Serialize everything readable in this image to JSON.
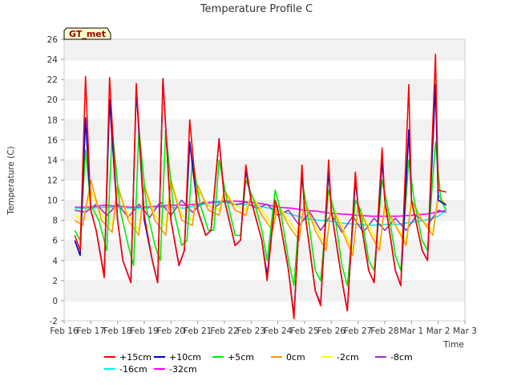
{
  "chart_data": {
    "type": "line",
    "title": "Temperature Profile C",
    "xlabel": "Time",
    "ylabel": "Temperature (C)",
    "ylim": [
      -2,
      26
    ],
    "yticks": [
      -2,
      0,
      2,
      4,
      6,
      8,
      10,
      12,
      14,
      16,
      18,
      20,
      22,
      24,
      26
    ],
    "xlim": [
      0,
      15
    ],
    "xticks": [
      {
        "x": 0,
        "label": "Feb 16"
      },
      {
        "x": 1,
        "label": "Feb 17"
      },
      {
        "x": 2,
        "label": "Feb 18"
      },
      {
        "x": 3,
        "label": "Feb 19"
      },
      {
        "x": 4,
        "label": "Feb 20"
      },
      {
        "x": 5,
        "label": "Feb 21"
      },
      {
        "x": 6,
        "label": "Feb 22"
      },
      {
        "x": 7,
        "label": "Feb 23"
      },
      {
        "x": 8,
        "label": "Feb 24"
      },
      {
        "x": 9,
        "label": "Feb 25"
      },
      {
        "x": 10,
        "label": "Feb 26"
      },
      {
        "x": 11,
        "label": "Feb 27"
      },
      {
        "x": 12,
        "label": "Feb 28"
      },
      {
        "x": 13,
        "label": "Mar 1"
      },
      {
        "x": 14,
        "label": "Mar 2"
      },
      {
        "x": 15,
        "label": "Mar 3"
      }
    ],
    "grid": "horizontal-bands",
    "legend_position": "bottom",
    "badge": "GT_met",
    "series": [
      {
        "name": "+15cm",
        "color": "#ff0000",
        "x": [
          0.4,
          0.6,
          0.8,
          1.0,
          1.2,
          1.5,
          1.7,
          2.0,
          2.2,
          2.5,
          2.7,
          3.0,
          3.3,
          3.5,
          3.7,
          4.0,
          4.3,
          4.5,
          4.7,
          5.0,
          5.3,
          5.5,
          5.8,
          6.0,
          6.4,
          6.6,
          6.8,
          7.0,
          7.4,
          7.6,
          7.9,
          8.0,
          8.4,
          8.6,
          8.9,
          9.0,
          9.4,
          9.6,
          9.9,
          10.0,
          10.4,
          10.6,
          10.9,
          11.0,
          11.4,
          11.6,
          11.9,
          12.0,
          12.4,
          12.6,
          12.9,
          13.0,
          13.4,
          13.6,
          13.9,
          14.0,
          14.3
        ],
        "y": [
          6.5,
          5.0,
          22.3,
          9.0,
          7.0,
          2.3,
          22.2,
          8.0,
          4.0,
          1.8,
          21.6,
          8.5,
          4.0,
          1.8,
          22.0,
          8.0,
          3.5,
          5.0,
          18.0,
          9.0,
          6.5,
          7.0,
          16.0,
          10.0,
          5.5,
          6.0,
          13.5,
          10.0,
          6.0,
          2.0,
          10.0,
          9.0,
          3.0,
          -1.8,
          13.5,
          9.0,
          1.0,
          -0.5,
          14.0,
          9.0,
          2.0,
          -1.0,
          12.8,
          9.5,
          3.0,
          1.8,
          15.2,
          10.0,
          3.0,
          1.5,
          21.5,
          10.0,
          5.0,
          4.0,
          24.5,
          11.0,
          10.8
        ]
      },
      {
        "name": "+10cm",
        "color": "#0000cc",
        "x": [
          0.4,
          0.6,
          0.8,
          1.0,
          1.2,
          1.5,
          1.7,
          2.0,
          2.2,
          2.5,
          2.7,
          3.0,
          3.3,
          3.5,
          3.7,
          4.0,
          4.3,
          4.5,
          4.7,
          5.0,
          5.3,
          5.5,
          5.8,
          6.0,
          6.4,
          6.6,
          6.8,
          7.0,
          7.4,
          7.6,
          7.9,
          8.0,
          8.4,
          8.6,
          8.9,
          9.0,
          9.4,
          9.6,
          9.9,
          10.0,
          10.4,
          10.6,
          10.9,
          11.0,
          11.4,
          11.6,
          11.9,
          12.0,
          12.4,
          12.6,
          12.9,
          13.0,
          13.4,
          13.6,
          13.9,
          14.0,
          14.3
        ],
        "y": [
          6.0,
          4.5,
          18.2,
          9.0,
          7.0,
          2.5,
          20.0,
          8.0,
          4.0,
          1.8,
          21.0,
          8.0,
          4.0,
          1.8,
          22.1,
          8.0,
          3.5,
          5.0,
          15.8,
          9.0,
          6.5,
          7.0,
          16.1,
          10.0,
          5.5,
          6.0,
          13.0,
          10.0,
          6.0,
          2.5,
          10.0,
          9.0,
          3.0,
          -1.5,
          13.0,
          9.0,
          1.0,
          -0.3,
          13.0,
          9.0,
          2.0,
          -1.0,
          12.0,
          9.5,
          3.0,
          1.8,
          14.0,
          10.0,
          3.0,
          1.5,
          17.0,
          10.0,
          5.0,
          4.0,
          21.5,
          10.0,
          9.5
        ]
      },
      {
        "name": "+5cm",
        "color": "#00ee00",
        "x": [
          0.4,
          0.6,
          0.8,
          1.0,
          1.3,
          1.6,
          1.8,
          2.1,
          2.4,
          2.6,
          2.8,
          3.1,
          3.4,
          3.6,
          3.8,
          4.1,
          4.4,
          4.6,
          4.8,
          5.1,
          5.4,
          5.6,
          5.8,
          6.1,
          6.4,
          6.6,
          6.8,
          7.1,
          7.4,
          7.6,
          7.9,
          8.1,
          8.4,
          8.6,
          8.9,
          9.1,
          9.4,
          9.6,
          9.9,
          10.1,
          10.4,
          10.6,
          10.9,
          11.1,
          11.4,
          11.6,
          11.9,
          12.1,
          12.4,
          12.6,
          12.9,
          13.1,
          13.4,
          13.6,
          13.9,
          14.1,
          14.3
        ],
        "y": [
          7.0,
          6.0,
          15.0,
          9.5,
          8.0,
          5.0,
          17.0,
          9.0,
          5.5,
          3.5,
          17.0,
          9.0,
          5.5,
          4.0,
          17.0,
          9.0,
          5.5,
          6.0,
          14.0,
          9.5,
          7.0,
          7.0,
          14.0,
          10.0,
          6.5,
          6.5,
          12.0,
          10.0,
          7.0,
          4.0,
          11.0,
          9.0,
          4.0,
          1.5,
          12.0,
          9.0,
          3.0,
          2.0,
          11.0,
          9.0,
          3.5,
          1.5,
          10.0,
          9.0,
          4.0,
          3.0,
          12.0,
          9.5,
          4.5,
          3.0,
          14.0,
          10.0,
          6.0,
          5.0,
          15.8,
          10.0,
          9.0
        ]
      },
      {
        "name": "0cm",
        "color": "#ff9900",
        "x": [
          0.4,
          0.7,
          1.0,
          1.4,
          1.8,
          2.0,
          2.4,
          2.8,
          3.0,
          3.4,
          3.8,
          4.0,
          4.4,
          4.8,
          5.0,
          5.4,
          5.8,
          6.0,
          6.4,
          6.8,
          7.0,
          7.4,
          7.8,
          8.0,
          8.4,
          8.8,
          9.0,
          9.4,
          9.8,
          10.0,
          10.4,
          10.8,
          11.0,
          11.4,
          11.8,
          12.0,
          12.4,
          12.8,
          13.0,
          13.4,
          13.8,
          14.0,
          14.3
        ],
        "y": [
          8.0,
          7.5,
          12.0,
          8.0,
          6.8,
          11.5,
          8.0,
          6.5,
          11.5,
          8.0,
          6.5,
          12.0,
          8.0,
          7.5,
          11.5,
          9.0,
          8.5,
          11.0,
          9.0,
          8.5,
          10.5,
          8.5,
          7.0,
          9.5,
          7.5,
          6.0,
          10.0,
          7.0,
          5.0,
          9.5,
          7.0,
          4.5,
          9.5,
          7.0,
          5.0,
          9.5,
          7.5,
          5.5,
          10.0,
          8.0,
          6.5,
          10.5,
          9.5
        ]
      },
      {
        "name": "-2cm",
        "color": "#ffff00",
        "x": [
          0.4,
          0.7,
          1.0,
          1.4,
          1.8,
          2.0,
          2.4,
          2.8,
          3.0,
          3.4,
          3.8,
          4.0,
          4.4,
          4.8,
          5.0,
          5.4,
          5.8,
          6.0,
          6.4,
          6.8,
          7.0,
          7.4,
          7.8,
          8.0,
          8.4,
          8.8,
          9.0,
          9.4,
          9.8,
          10.0,
          10.4,
          10.8,
          11.0,
          11.4,
          11.8,
          12.0,
          12.4,
          12.8,
          13.0,
          13.4,
          13.8,
          14.0,
          14.3
        ],
        "y": [
          8.5,
          8.0,
          11.0,
          8.5,
          7.5,
          11.0,
          8.5,
          7.0,
          11.5,
          8.5,
          7.5,
          12.0,
          8.5,
          8.0,
          11.0,
          9.5,
          9.0,
          11.0,
          9.5,
          9.0,
          10.5,
          9.0,
          7.5,
          9.5,
          8.0,
          6.5,
          9.5,
          7.5,
          5.5,
          9.5,
          7.5,
          5.0,
          9.0,
          7.5,
          5.5,
          9.0,
          7.5,
          6.0,
          9.5,
          8.0,
          7.0,
          10.0,
          9.5
        ]
      },
      {
        "name": "-8cm",
        "color": "#9933cc",
        "x": [
          0.4,
          0.8,
          1.2,
          1.6,
          2.0,
          2.4,
          2.8,
          3.2,
          3.6,
          4.0,
          4.4,
          4.8,
          5.2,
          5.6,
          6.0,
          6.4,
          6.8,
          7.2,
          7.6,
          8.0,
          8.4,
          8.8,
          9.2,
          9.6,
          10.0,
          10.4,
          10.8,
          11.2,
          11.6,
          12.0,
          12.4,
          12.8,
          13.2,
          13.6,
          14.0,
          14.3
        ],
        "y": [
          9.0,
          8.8,
          9.6,
          8.5,
          9.6,
          8.3,
          9.6,
          8.3,
          9.8,
          8.5,
          10.0,
          8.8,
          9.8,
          9.2,
          10.0,
          9.5,
          9.8,
          9.2,
          9.6,
          8.5,
          9.0,
          7.5,
          8.8,
          7.0,
          8.6,
          6.8,
          8.4,
          6.8,
          8.2,
          7.0,
          8.2,
          7.0,
          8.5,
          7.5,
          9.0,
          8.8
        ]
      },
      {
        "name": "-16cm",
        "color": "#00eeee",
        "x": [
          0.4,
          1.0,
          1.5,
          2.0,
          2.5,
          3.0,
          3.5,
          4.0,
          4.5,
          5.0,
          5.5,
          6.0,
          6.5,
          7.0,
          7.5,
          8.0,
          8.5,
          9.0,
          9.5,
          10.0,
          10.5,
          11.0,
          11.5,
          12.0,
          12.5,
          13.0,
          13.5,
          14.0,
          14.3
        ],
        "y": [
          9.2,
          9.2,
          9.3,
          9.3,
          9.2,
          9.2,
          9.3,
          9.3,
          9.2,
          9.5,
          9.7,
          9.8,
          9.6,
          9.5,
          9.3,
          9.0,
          8.6,
          8.2,
          8.0,
          7.9,
          7.7,
          7.6,
          7.5,
          7.6,
          7.6,
          7.8,
          8.0,
          8.4,
          9.0
        ]
      },
      {
        "name": "-32cm",
        "color": "#ff00ff",
        "x": [
          0.4,
          1.0,
          1.5,
          2.0,
          2.5,
          3.0,
          3.5,
          4.0,
          4.5,
          5.0,
          5.5,
          6.0,
          6.5,
          7.0,
          7.5,
          8.0,
          8.5,
          9.0,
          9.5,
          10.0,
          10.5,
          11.0,
          11.5,
          12.0,
          12.5,
          13.0,
          13.5,
          14.0,
          14.3
        ],
        "y": [
          9.3,
          9.3,
          9.5,
          9.4,
          9.3,
          9.3,
          9.4,
          9.5,
          9.5,
          9.6,
          9.8,
          9.9,
          9.9,
          9.8,
          9.6,
          9.3,
          9.2,
          9.0,
          8.9,
          8.7,
          8.6,
          8.5,
          8.4,
          8.4,
          8.4,
          8.5,
          8.6,
          8.8,
          9.0
        ]
      }
    ]
  }
}
